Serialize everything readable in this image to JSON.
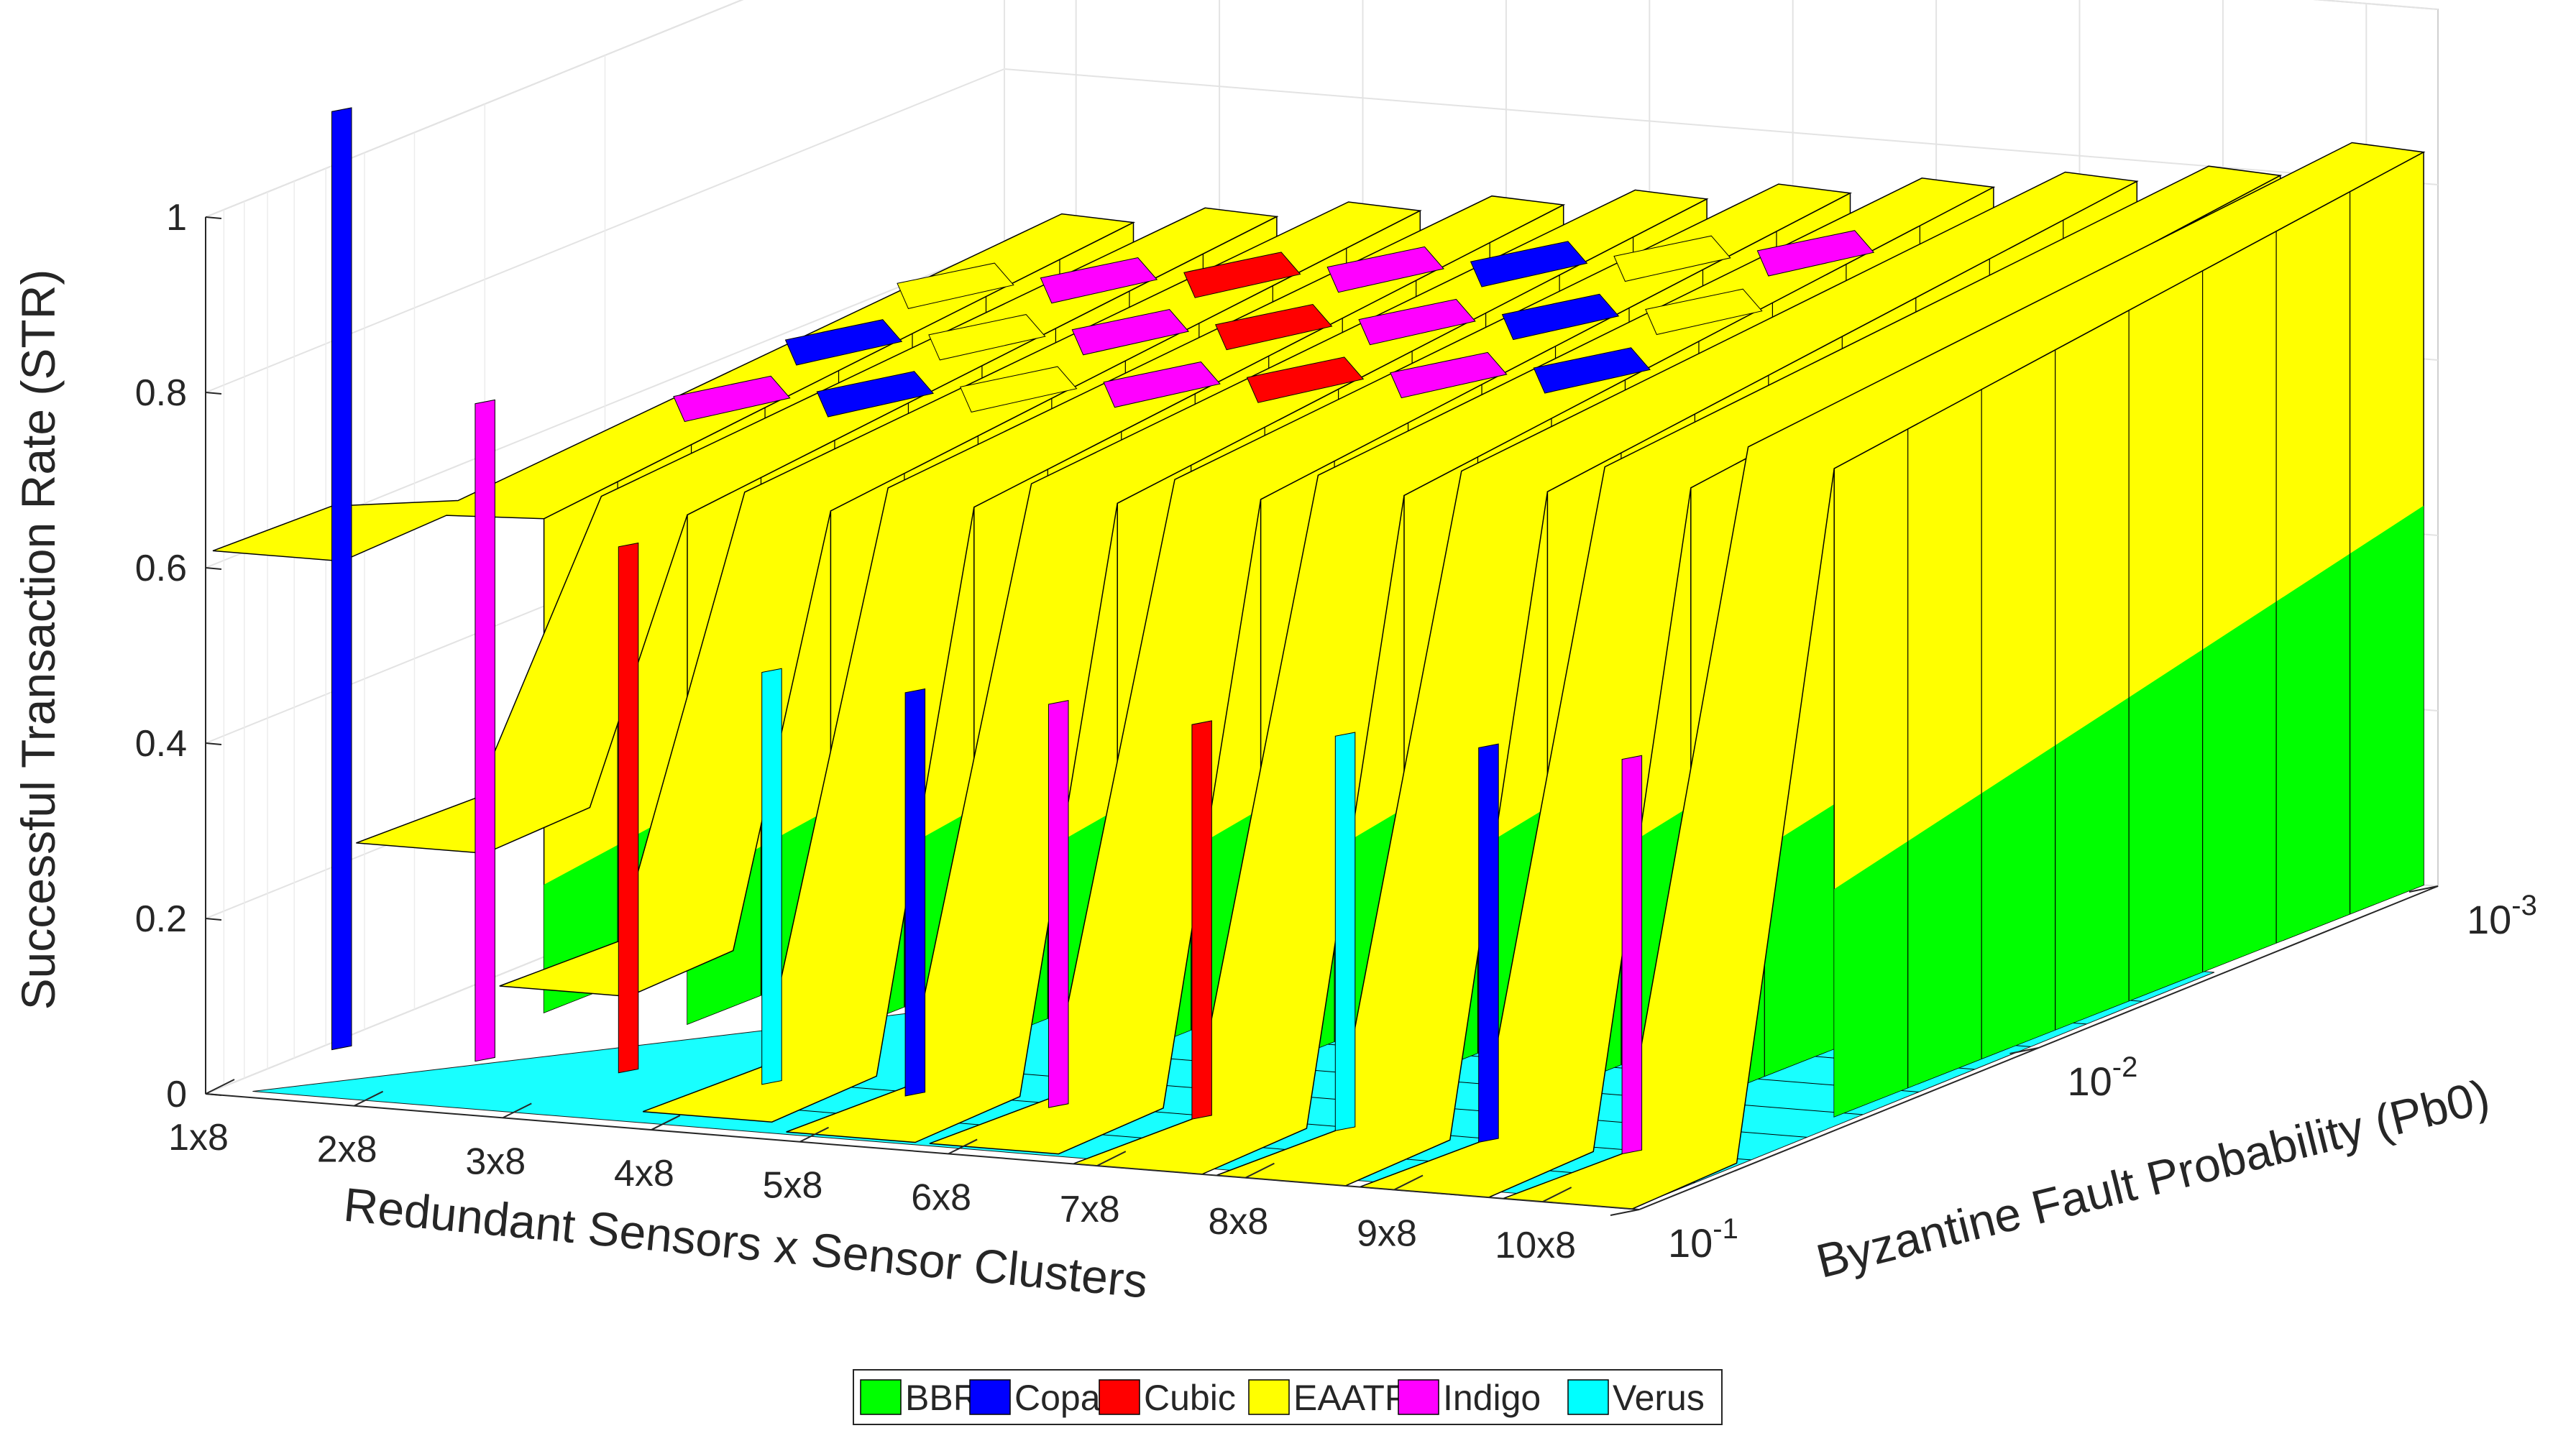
{
  "chart_data": {
    "type": "3d-surface",
    "title": "",
    "zlabel": "Successful Transaction Rate (STR)",
    "xlabel": "Redundant Sensors x Sensor Clusters",
    "ylabel": "Byzantine Fault Probability (Pb0)",
    "zlim": [
      0,
      1
    ],
    "z_ticks": [
      "0",
      "0.2",
      "0.4",
      "0.6",
      "0.8",
      "1"
    ],
    "x_categories": [
      "1x8",
      "2x8",
      "3x8",
      "4x8",
      "5x8",
      "6x8",
      "7x8",
      "8x8",
      "9x8",
      "10x8"
    ],
    "y_ticks": [
      {
        "base": "10",
        "exp": "-1"
      },
      {
        "base": "10",
        "exp": "-2"
      },
      {
        "base": "10",
        "exp": "-3"
      }
    ],
    "y_range": [
      0.001,
      0.1
    ],
    "legend_position": "bottom-center",
    "series": [
      {
        "name": "BBR",
        "color": "#00ff00"
      },
      {
        "name": "Copa",
        "color": "#0000ff"
      },
      {
        "name": "Cubic",
        "color": "#ff0000"
      },
      {
        "name": "EAATP",
        "color": "#ffff00"
      },
      {
        "name": "Indigo",
        "color": "#ff00ff"
      },
      {
        "name": "Verus",
        "color": "#00ffff"
      }
    ],
    "surface": {
      "best_method_top": "EAATP",
      "best_method_lower": "BBR",
      "str_at_low_pb0_by_config": [
        0.64,
        0.66,
        0.68,
        0.7,
        0.72,
        0.74,
        0.76,
        0.78,
        0.8,
        0.84
      ],
      "str_at_high_pb0_by_config": [
        0.62,
        0.3,
        0.15,
        0.02,
        0.01,
        0.01,
        0.0,
        0.0,
        0.0,
        0.0
      ],
      "min_dip_by_config": [
        0.3,
        0.13,
        0.02,
        0.01,
        0.0,
        0.0,
        0.0,
        0.0,
        0.0,
        0.0
      ]
    }
  }
}
